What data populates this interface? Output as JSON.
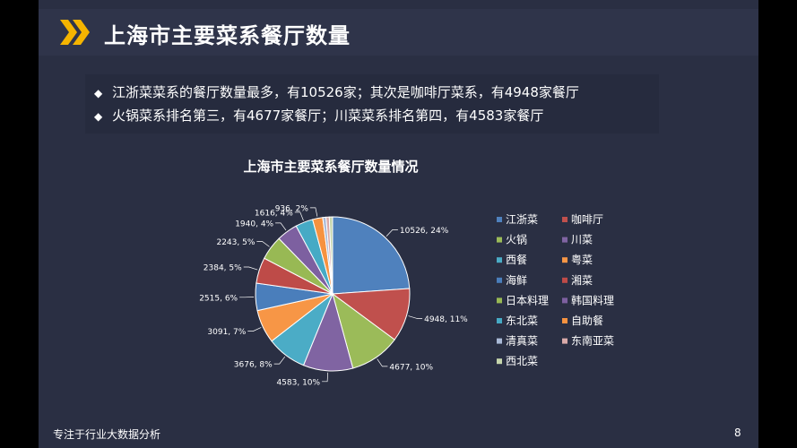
{
  "header": {
    "title": "上海市主要菜系餐厅数量",
    "icon": "double-chevron-icon",
    "accent": "#f5b400"
  },
  "bullets": [
    "江浙菜菜系的餐厅数量最多，有10526家；其次是咖啡厅菜系，有4948家餐厅",
    "火锅菜系排名第三，有4677家餐厅；川菜菜系排名第四，有4583家餐厅"
  ],
  "bullet_marker": "◆",
  "chart_data": {
    "type": "pie",
    "title": "上海市主要菜系餐厅数量情况",
    "categories": [
      "江浙菜",
      "咖啡厅",
      "火锅",
      "川菜",
      "西餐",
      "粤菜",
      "海鲜",
      "湘菜",
      "日本料理",
      "韩国料理",
      "东北菜",
      "自助餐",
      "清真菜",
      "东南亚菜",
      "西北菜"
    ],
    "values": [
      10526,
      4948,
      4677,
      4583,
      3676,
      3091,
      2515,
      2384,
      2243,
      1940,
      1616,
      936,
      0,
      0,
      0
    ],
    "data_labels": [
      "10526, 24%",
      "4948, 11%",
      "4677, 10%",
      "4583, 10%",
      "3676, 8%",
      "3091, 7%",
      "2515, 6%",
      "2384, 5%",
      "2243, 5%",
      "1940, 4%",
      "1616, 4%",
      "936, 2%",
      "",
      "",
      ""
    ],
    "colors": [
      "#4f81bd",
      "#c0504d",
      "#9bbb59",
      "#8064a2",
      "#4bacc6",
      "#f79646",
      "#4a7ebb",
      "#be4b48",
      "#98b954",
      "#7d60a0",
      "#46aac5",
      "#f69240",
      "#aabad7",
      "#d9aaa9",
      "#c6d6ac"
    ],
    "legend_position": "right"
  },
  "footer": {
    "text": "专注于行业大数据分析",
    "page": "8"
  }
}
